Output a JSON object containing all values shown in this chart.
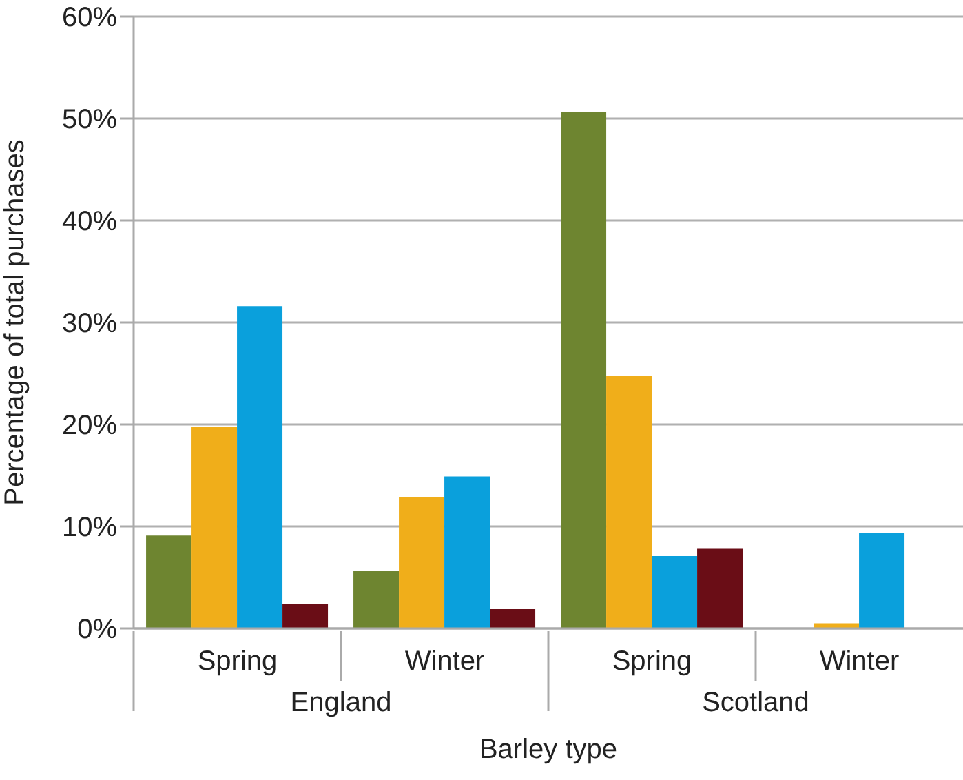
{
  "chart_data": {
    "type": "bar",
    "xlabel": "Barley type",
    "ylabel": "Percentage of total purchases",
    "categories": [
      "Spring",
      "Winter",
      "Spring",
      "Winter"
    ],
    "annotations": [
      "England",
      "Scotland"
    ],
    "series": [
      {
        "color": "#6e8530",
        "values": [
          9.1,
          5.6,
          50.6,
          null
        ]
      },
      {
        "color": "#f0ae1a",
        "values": [
          19.8,
          12.9,
          24.8,
          0.5
        ]
      },
      {
        "color": "#0aa0dc",
        "values": [
          31.6,
          14.9,
          7.1,
          9.4
        ]
      },
      {
        "color": "#6a0d16",
        "values": [
          2.4,
          1.9,
          7.8,
          null
        ]
      }
    ],
    "ylim": [
      0,
      60
    ],
    "yticks": [
      {
        "value": 0,
        "label": "0%"
      },
      {
        "value": 10,
        "label": "10%"
      },
      {
        "value": 20,
        "label": "20%"
      },
      {
        "value": 30,
        "label": "30%"
      },
      {
        "value": 40,
        "label": "40%"
      },
      {
        "value": 50,
        "label": "50%"
      },
      {
        "value": 60,
        "label": "60%"
      }
    ],
    "grid": "y"
  }
}
